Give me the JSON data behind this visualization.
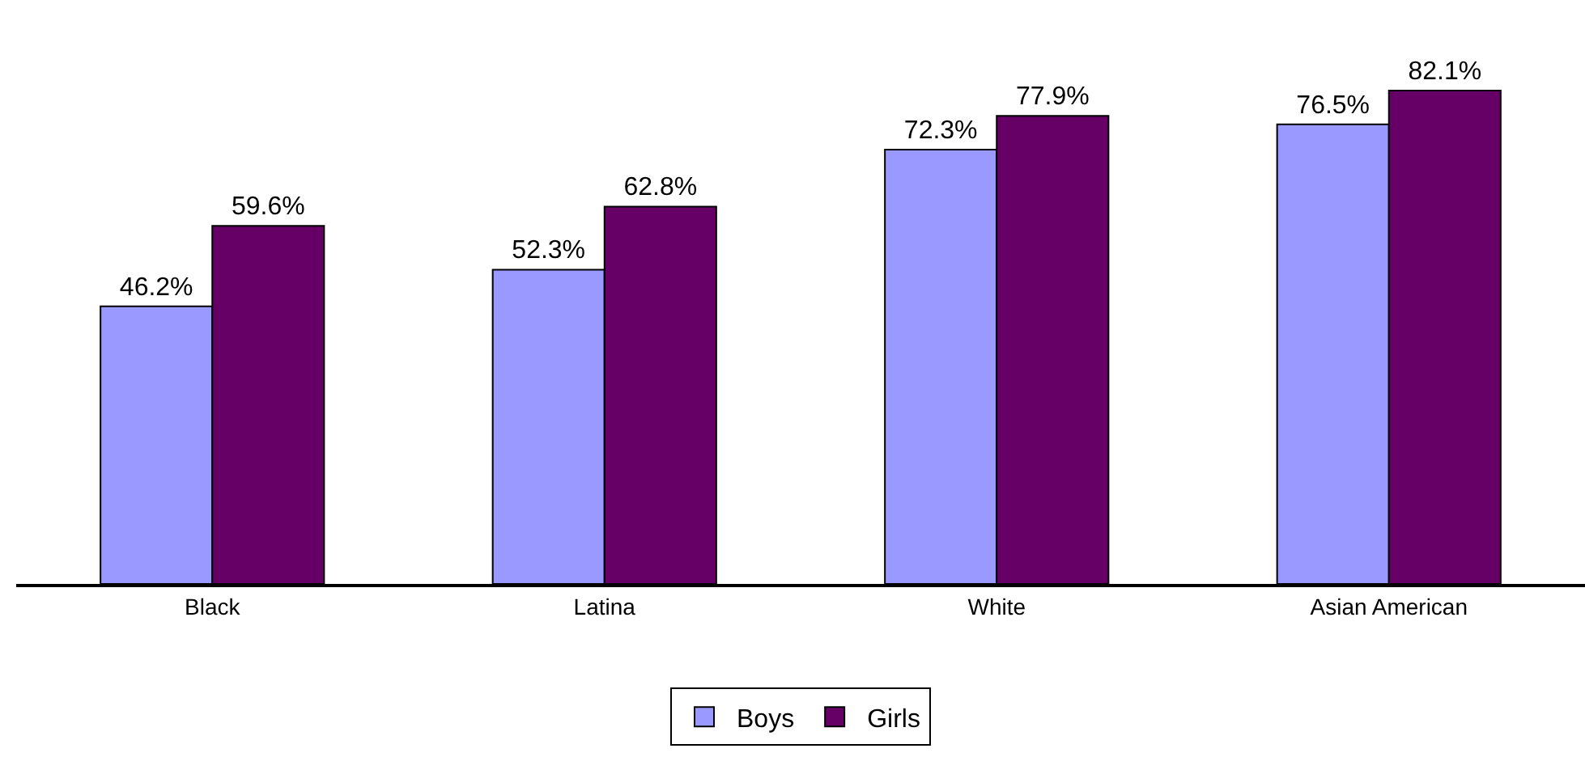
{
  "chart_data": {
    "type": "bar",
    "categories": [
      "Black",
      "Latina",
      "White",
      "Asian American"
    ],
    "series": [
      {
        "name": "Boys",
        "color": "#9999ff",
        "values": [
          46.2,
          52.3,
          72.3,
          76.5
        ],
        "value_labels": [
          "46.2%",
          "52.3%",
          "72.3%",
          "76.5%"
        ]
      },
      {
        "name": "Girls",
        "color": "#660066",
        "values": [
          59.6,
          62.8,
          77.9,
          82.1
        ],
        "value_labels": [
          "59.6%",
          "62.8%",
          "77.9%",
          "82.1%"
        ]
      }
    ],
    "tick_labels": "x",
    "legend": "bottom"
  }
}
